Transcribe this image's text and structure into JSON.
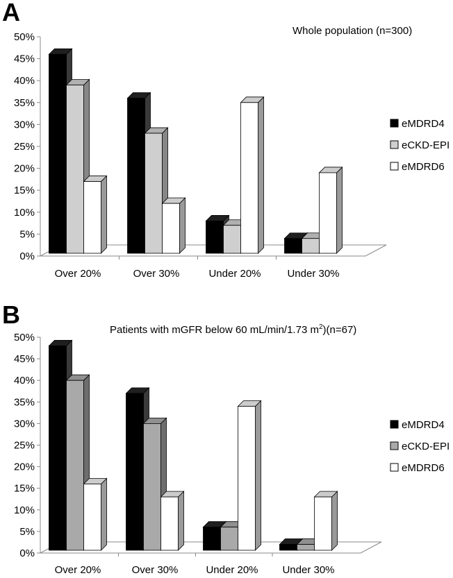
{
  "chart_data": [
    {
      "type": "bar",
      "panel_label": "A",
      "title": "Whole population (n=300)",
      "categories": [
        "Over 20%",
        "Over 30%",
        "Under 20%",
        "Under 30%"
      ],
      "series": [
        {
          "name": "eMDRD4",
          "values": [
            46,
            36,
            8,
            4
          ],
          "color": "#000000"
        },
        {
          "name": "eCKD-EPI",
          "values": [
            39,
            28,
            7,
            4
          ],
          "color": "#cfcfcf"
        },
        {
          "name": "eMDRD6",
          "values": [
            17,
            12,
            35,
            19
          ],
          "color": "#ffffff"
        }
      ],
      "ylim": [
        0,
        50
      ],
      "yticks": [
        "0%",
        "5%",
        "10%",
        "15%",
        "20%",
        "25%",
        "30%",
        "35%",
        "40%",
        "45%",
        "50%"
      ],
      "legend_position": "right",
      "grid": false
    },
    {
      "type": "bar",
      "panel_label": "B",
      "title": "Patients with mGFR below 60 mL/min/1.73 m",
      "title_superscript": "2",
      "title_suffix": ")(n=67)",
      "categories": [
        "Over 20%",
        "Over 30%",
        "Under 20%",
        "Under 30%"
      ],
      "series": [
        {
          "name": "eMDRD4",
          "values": [
            48,
            37,
            6,
            2
          ],
          "color": "#000000"
        },
        {
          "name": "eCKD-EPI",
          "values": [
            40,
            30,
            6,
            2
          ],
          "color": "#a9a9a9"
        },
        {
          "name": "eMDRD6",
          "values": [
            16,
            13,
            34,
            13
          ],
          "color": "#ffffff"
        }
      ],
      "ylim": [
        0,
        50
      ],
      "yticks": [
        "0%",
        "5%",
        "10%",
        "15%",
        "20%",
        "25%",
        "30%",
        "35%",
        "40%",
        "45%",
        "50%"
      ],
      "legend_position": "right",
      "grid": false
    }
  ]
}
